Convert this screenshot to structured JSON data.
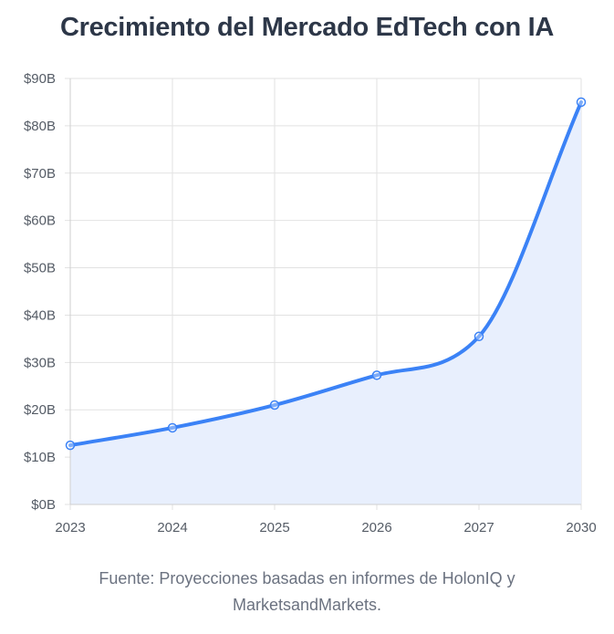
{
  "chart_data": {
    "type": "area",
    "title": "Crecimiento del Mercado EdTech con IA",
    "categories": [
      "2023",
      "2024",
      "2025",
      "2026",
      "2027",
      "2030"
    ],
    "values": [
      12.5,
      16.2,
      21.0,
      27.3,
      35.5,
      85.0
    ],
    "y_unit_prefix": "$",
    "y_unit_suffix": "B",
    "ylim": [
      0,
      90
    ],
    "yticks": [
      0,
      10,
      20,
      30,
      40,
      50,
      60,
      70,
      80,
      90
    ],
    "ytick_labels": [
      "$0B",
      "$10B",
      "$20B",
      "$30B",
      "$40B",
      "$50B",
      "$60B",
      "$70B",
      "$80B",
      "$90B"
    ],
    "grid": true,
    "line_color": "#3b82f6",
    "fill_color": "#e8effd",
    "grid_color": "#e2e2e2"
  },
  "source_lines": [
    "Fuente: Proyecciones basadas en informes de HolonIQ y",
    "MarketsandMarkets."
  ]
}
